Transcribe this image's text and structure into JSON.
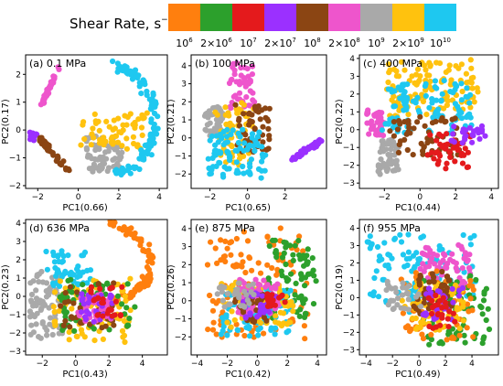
{
  "legend": {
    "title": "Shear Rate, s",
    "title_superscript": "−1",
    "swatch_colors": [
      "#ff7f0e",
      "#2ca02c",
      "#e41a1c",
      "#9b30ff",
      "#8b4513",
      "#ee55cc",
      "#a9a9a9",
      "#ffc20e",
      "#1ec8f0"
    ],
    "ticks": [
      {
        "coef": "",
        "exp": "6"
      },
      {
        "coef": "2×",
        "exp": "6"
      },
      {
        "coef": "",
        "exp": "7"
      },
      {
        "coef": "2×",
        "exp": "7"
      },
      {
        "coef": "",
        "exp": "8"
      },
      {
        "coef": "2×",
        "exp": "8"
      },
      {
        "coef": "",
        "exp": "9"
      },
      {
        "coef": "2×",
        "exp": "9"
      },
      {
        "coef": "",
        "exp": "10"
      }
    ],
    "tick_base": "10"
  },
  "chart_data": [
    {
      "type": "scatter",
      "title": "(a) 0.1 MPa",
      "xlabel": "PC1(0.66)",
      "ylabel": "PC2(0.17)",
      "xlim": [
        -2.6,
        4.4
      ],
      "ylim": [
        -2.1,
        2.7
      ],
      "xticks": [
        -2,
        0,
        2,
        4
      ],
      "yticks": [
        -2,
        -1,
        0,
        1,
        2
      ],
      "clusters": [
        {
          "color_index": 5,
          "x": [
            -1.8,
            -0.9
          ],
          "y": [
            0.9,
            2.3
          ],
          "shape": "line",
          "spread": 0.12,
          "n": 40
        },
        {
          "color_index": 3,
          "x": [
            -2.4,
            -2.0
          ],
          "y": [
            -0.4,
            0.0
          ],
          "shape": "blob",
          "spread": 0.1,
          "n": 12
        },
        {
          "color_index": 4,
          "x": [
            -1.9,
            -0.5
          ],
          "y": [
            -0.3,
            -1.5
          ],
          "shape": "line",
          "spread": 0.15,
          "n": 50
        },
        {
          "color_index": 6,
          "x": [
            0.3,
            2.2
          ],
          "y": [
            -0.2,
            -1.5
          ],
          "shape": "blob",
          "spread": 0.4,
          "n": 70
        },
        {
          "color_index": 7,
          "x": [
            0.0,
            3.5
          ],
          "y": [
            -0.7,
            0.6
          ],
          "shape": "blob",
          "spread": 0.5,
          "n": 60
        },
        {
          "color_index": 8,
          "x": [
            -0.6,
            4.0
          ],
          "y": [
            -1.8,
            2.5
          ],
          "shape": "arc",
          "spread": 0.3,
          "n": 110
        }
      ]
    },
    {
      "type": "scatter",
      "title": "(b) 100 MPa",
      "xlabel": "PC1(0.65)",
      "ylabel": "PC2(0.21)",
      "xlim": [
        -3.0,
        4.2
      ],
      "ylim": [
        -2.8,
        4.6
      ],
      "xticks": [
        -2,
        0,
        2
      ],
      "yticks": [
        -2,
        -1,
        0,
        1,
        2,
        3,
        4
      ],
      "clusters": [
        {
          "color_index": 5,
          "x": [
            -1.0,
            0.4
          ],
          "y": [
            1.5,
            4.2
          ],
          "shape": "blob",
          "spread": 0.35,
          "n": 45
        },
        {
          "color_index": 6,
          "x": [
            -2.3,
            -1.2
          ],
          "y": [
            0.0,
            1.8
          ],
          "shape": "blob",
          "spread": 0.3,
          "n": 40
        },
        {
          "color_index": 7,
          "x": [
            -1.8,
            0.4
          ],
          "y": [
            -1.5,
            2.0
          ],
          "shape": "blob",
          "spread": 0.5,
          "n": 70
        },
        {
          "color_index": 4,
          "x": [
            -0.6,
            1.2
          ],
          "y": [
            -0.8,
            2.0
          ],
          "shape": "blob",
          "spread": 0.5,
          "n": 50
        },
        {
          "color_index": 8,
          "x": [
            -2.2,
            1.0
          ],
          "y": [
            -2.3,
            0.5
          ],
          "shape": "blob",
          "spread": 0.5,
          "n": 90
        },
        {
          "color_index": 3,
          "x": [
            2.4,
            3.9
          ],
          "y": [
            -1.2,
            -0.1
          ],
          "shape": "line",
          "spread": 0.18,
          "n": 45
        }
      ]
    },
    {
      "type": "scatter",
      "title": "(c) 400 MPa",
      "xlabel": "PC1(0.44)",
      "ylabel": "PC2(0.22)",
      "xlim": [
        -3.4,
        4.4
      ],
      "ylim": [
        -3.3,
        4.2
      ],
      "xticks": [
        -2,
        0,
        2,
        4
      ],
      "yticks": [
        -3,
        -2,
        -1,
        0,
        1,
        2,
        3,
        4
      ],
      "clusters": [
        {
          "color_index": 7,
          "x": [
            -2.0,
            3.5
          ],
          "y": [
            0.5,
            3.9
          ],
          "shape": "blob",
          "spread": 0.7,
          "n": 120
        },
        {
          "color_index": 5,
          "x": [
            -3.0,
            -2.0
          ],
          "y": [
            -0.4,
            1.2
          ],
          "shape": "blob",
          "spread": 0.3,
          "n": 40
        },
        {
          "color_index": 8,
          "x": [
            -2.2,
            3.0
          ],
          "y": [
            -0.2,
            2.8
          ],
          "shape": "blob",
          "spread": 0.7,
          "n": 110
        },
        {
          "color_index": 6,
          "x": [
            -2.4,
            -1.0
          ],
          "y": [
            -2.5,
            -0.5
          ],
          "shape": "blob",
          "spread": 0.4,
          "n": 55
        },
        {
          "color_index": 4,
          "x": [
            -1.8,
            2.4
          ],
          "y": [
            -1.6,
            0.8
          ],
          "shape": "blob",
          "spread": 0.6,
          "n": 60
        },
        {
          "color_index": 2,
          "x": [
            0.2,
            3.0
          ],
          "y": [
            -2.2,
            -0.2
          ],
          "shape": "blob",
          "spread": 0.5,
          "n": 45
        },
        {
          "color_index": 3,
          "x": [
            1.5,
            3.8
          ],
          "y": [
            -0.8,
            0.2
          ],
          "shape": "blob",
          "spread": 0.35,
          "n": 25
        }
      ]
    },
    {
      "type": "scatter",
      "title": "(d) 636 MPa",
      "xlabel": "PC1(0.43)",
      "ylabel": "PC2(0.23)",
      "xlim": [
        -3.0,
        5.5
      ],
      "ylim": [
        -3.2,
        4.2
      ],
      "xticks": [
        -2,
        0,
        2,
        4
      ],
      "yticks": [
        -3,
        -2,
        -1,
        0,
        1,
        2,
        3,
        4
      ],
      "clusters": [
        {
          "color_index": 0,
          "x": [
            -1.0,
            4.8
          ],
          "y": [
            -0.5,
            4.0
          ],
          "shape": "arc",
          "spread": 0.4,
          "n": 90
        },
        {
          "color_index": 6,
          "x": [
            -2.8,
            -0.8
          ],
          "y": [
            -2.4,
            1.5
          ],
          "shape": "blob",
          "spread": 0.5,
          "n": 80
        },
        {
          "color_index": 8,
          "x": [
            -2.0,
            1.0
          ],
          "y": [
            0.5,
            2.5
          ],
          "shape": "blob",
          "spread": 0.4,
          "n": 50
        },
        {
          "color_index": 7,
          "x": [
            -1.5,
            3.5
          ],
          "y": [
            -2.5,
            1.0
          ],
          "shape": "blob",
          "spread": 0.7,
          "n": 90
        },
        {
          "color_index": 1,
          "x": [
            -1.2,
            3.6
          ],
          "y": [
            -2.0,
            1.0
          ],
          "shape": "blob",
          "spread": 0.6,
          "n": 60
        },
        {
          "color_index": 4,
          "x": [
            -1.0,
            2.5
          ],
          "y": [
            -1.8,
            0.8
          ],
          "shape": "blob",
          "spread": 0.5,
          "n": 45
        },
        {
          "color_index": 5,
          "x": [
            -0.2,
            2.2
          ],
          "y": [
            -1.5,
            0.5
          ],
          "shape": "blob",
          "spread": 0.4,
          "n": 35
        },
        {
          "color_index": 3,
          "x": [
            0.0,
            2.4
          ],
          "y": [
            -1.4,
            0.2
          ],
          "shape": "blob",
          "spread": 0.4,
          "n": 30
        },
        {
          "color_index": 2,
          "x": [
            0.8,
            2.8
          ],
          "y": [
            -1.2,
            0.6
          ],
          "shape": "blob",
          "spread": 0.4,
          "n": 25
        }
      ]
    },
    {
      "type": "scatter",
      "title": "(e) 875 MPa",
      "xlabel": "PC1(0.42)",
      "ylabel": "PC2(0.26)",
      "xlim": [
        -4.4,
        4.6
      ],
      "ylim": [
        -3.0,
        4.5
      ],
      "xticks": [
        -4,
        -2,
        0,
        2,
        4
      ],
      "yticks": [
        -2,
        -1,
        0,
        1,
        2,
        3,
        4
      ],
      "clusters": [
        {
          "color_index": 0,
          "x": [
            -3.5,
            3.5
          ],
          "y": [
            -2.2,
            4.2
          ],
          "shape": "blob",
          "spread": 1.2,
          "n": 120
        },
        {
          "color_index": 1,
          "x": [
            0.5,
            4.0
          ],
          "y": [
            -1.0,
            3.5
          ],
          "shape": "blob",
          "spread": 0.7,
          "n": 80
        },
        {
          "color_index": 8,
          "x": [
            -2.5,
            2.5
          ],
          "y": [
            -2.0,
            0.8
          ],
          "shape": "blob",
          "spread": 0.7,
          "n": 90
        },
        {
          "color_index": 7,
          "x": [
            -2.5,
            2.5
          ],
          "y": [
            -1.5,
            1.0
          ],
          "shape": "blob",
          "spread": 0.6,
          "n": 70
        },
        {
          "color_index": 5,
          "x": [
            -1.5,
            1.5
          ],
          "y": [
            -0.8,
            1.2
          ],
          "shape": "blob",
          "spread": 0.5,
          "n": 45
        },
        {
          "color_index": 4,
          "x": [
            -1.5,
            1.0
          ],
          "y": [
            -1.2,
            0.5
          ],
          "shape": "blob",
          "spread": 0.4,
          "n": 35
        },
        {
          "color_index": 3,
          "x": [
            -1.0,
            1.5
          ],
          "y": [
            -1.0,
            0.6
          ],
          "shape": "blob",
          "spread": 0.4,
          "n": 30
        },
        {
          "color_index": 2,
          "x": [
            0.6,
            2.0
          ],
          "y": [
            -0.4,
            0.4
          ],
          "shape": "blob",
          "spread": 0.3,
          "n": 20
        },
        {
          "color_index": 6,
          "x": [
            -2.8,
            0.0
          ],
          "y": [
            -0.5,
            1.0
          ],
          "shape": "blob",
          "spread": 0.4,
          "n": 30
        }
      ]
    },
    {
      "type": "scatter",
      "title": "(f) 955 MPa",
      "xlabel": "PC1(0.49)",
      "ylabel": "PC2(0.19)",
      "xlim": [
        -4.5,
        6.0
      ],
      "ylim": [
        -3.3,
        4.5
      ],
      "xticks": [
        -4,
        -2,
        0,
        2,
        4
      ],
      "yticks": [
        -3,
        -2,
        -1,
        0,
        1,
        2,
        3,
        4
      ],
      "clusters": [
        {
          "color_index": 8,
          "x": [
            -4.0,
            4.5
          ],
          "y": [
            -1.0,
            3.8
          ],
          "shape": "blob",
          "spread": 1.0,
          "n": 110
        },
        {
          "color_index": 5,
          "x": [
            0.0,
            4.0
          ],
          "y": [
            0.0,
            3.0
          ],
          "shape": "blob",
          "spread": 0.7,
          "n": 70
        },
        {
          "color_index": 1,
          "x": [
            -0.5,
            5.5
          ],
          "y": [
            -2.8,
            1.5
          ],
          "shape": "blob",
          "spread": 0.9,
          "n": 90
        },
        {
          "color_index": 0,
          "x": [
            -1.5,
            4.5
          ],
          "y": [
            -2.5,
            1.5
          ],
          "shape": "blob",
          "spread": 0.8,
          "n": 70
        },
        {
          "color_index": 7,
          "x": [
            -1.5,
            3.5
          ],
          "y": [
            -2.0,
            1.0
          ],
          "shape": "blob",
          "spread": 0.7,
          "n": 70
        },
        {
          "color_index": 4,
          "x": [
            -0.5,
            2.5
          ],
          "y": [
            -1.0,
            1.5
          ],
          "shape": "blob",
          "spread": 0.5,
          "n": 45
        },
        {
          "color_index": 3,
          "x": [
            0.0,
            3.5
          ],
          "y": [
            -1.5,
            0.8
          ],
          "shape": "blob",
          "spread": 0.5,
          "n": 35
        },
        {
          "color_index": 2,
          "x": [
            0.5,
            3.0
          ],
          "y": [
            -1.8,
            0.2
          ],
          "shape": "blob",
          "spread": 0.4,
          "n": 25
        },
        {
          "color_index": 6,
          "x": [
            -2.5,
            0.5
          ],
          "y": [
            -0.8,
            1.0
          ],
          "shape": "blob",
          "spread": 0.5,
          "n": 30
        }
      ]
    }
  ]
}
